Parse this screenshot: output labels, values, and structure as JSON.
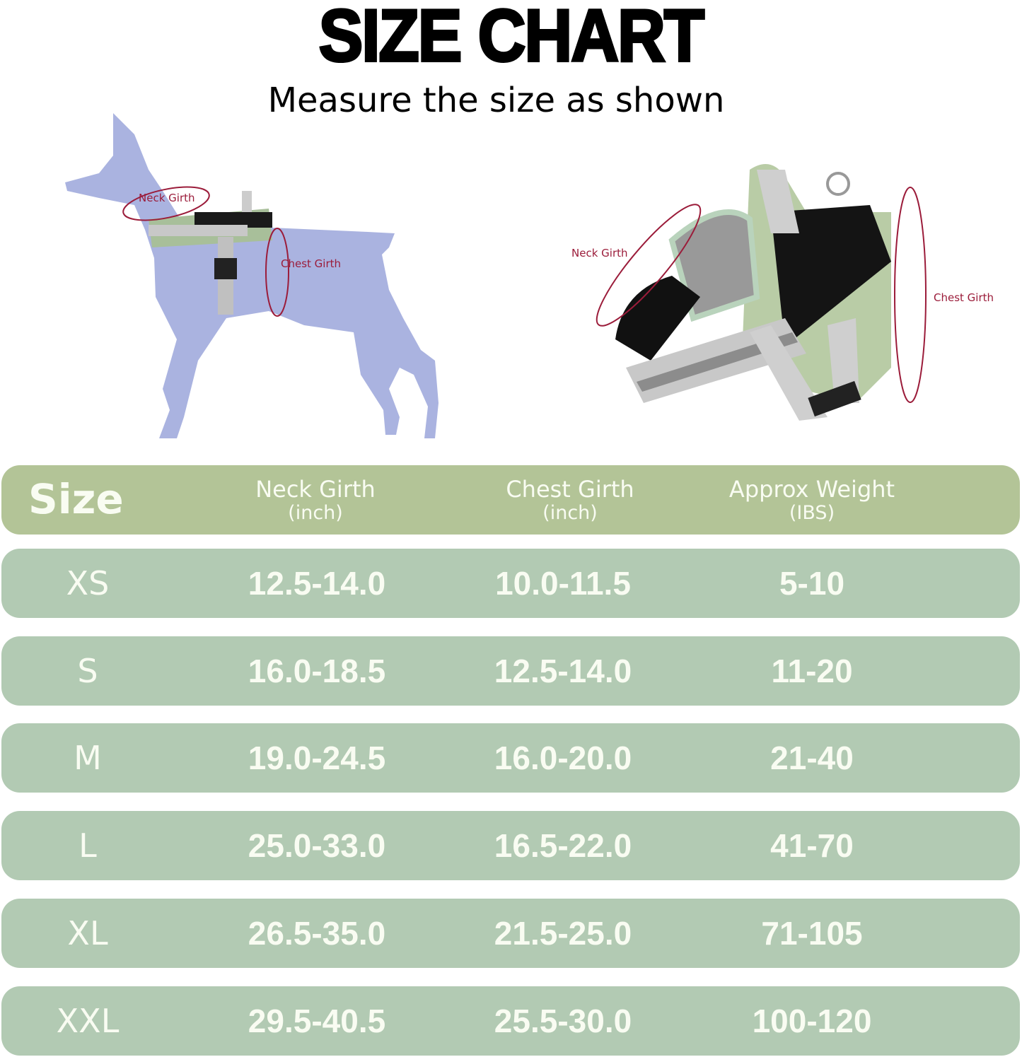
{
  "title": "SIZE CHART",
  "subtitle": "Measure the size as shown",
  "illustration_labels": {
    "dog_neck": "Neck Girth",
    "dog_chest": "Chest Girth",
    "harness_neck": "Neck Girth",
    "harness_chest": "Chest Girth"
  },
  "colors": {
    "header_bg": "#b3c497",
    "row_bg": "#b2cab3",
    "text": "#f9fcf2",
    "measure_line": "#9b1c3a",
    "dog_silhouette": "#aab3e0"
  },
  "table": {
    "headers": {
      "size": "Size",
      "neck": "Neck Girth",
      "neck_unit": "(inch)",
      "chest": "Chest Girth",
      "chest_unit": "(inch)",
      "weight": "Approx Weight",
      "weight_unit": "(IBS)"
    },
    "rows": [
      {
        "size": "XS",
        "neck": "12.5-14.0",
        "chest": "10.0-11.5",
        "weight": "5-10"
      },
      {
        "size": "S",
        "neck": "16.0-18.5",
        "chest": "12.5-14.0",
        "weight": "11-20"
      },
      {
        "size": "M",
        "neck": "19.0-24.5",
        "chest": "16.0-20.0",
        "weight": "21-40"
      },
      {
        "size": "L",
        "neck": "25.0-33.0",
        "chest": "16.5-22.0",
        "weight": "41-70"
      },
      {
        "size": "XL",
        "neck": "26.5-35.0",
        "chest": "21.5-25.0",
        "weight": "71-105"
      },
      {
        "size": "XXL",
        "neck": "29.5-40.5",
        "chest": "25.5-30.0",
        "weight": "100-120"
      }
    ]
  }
}
